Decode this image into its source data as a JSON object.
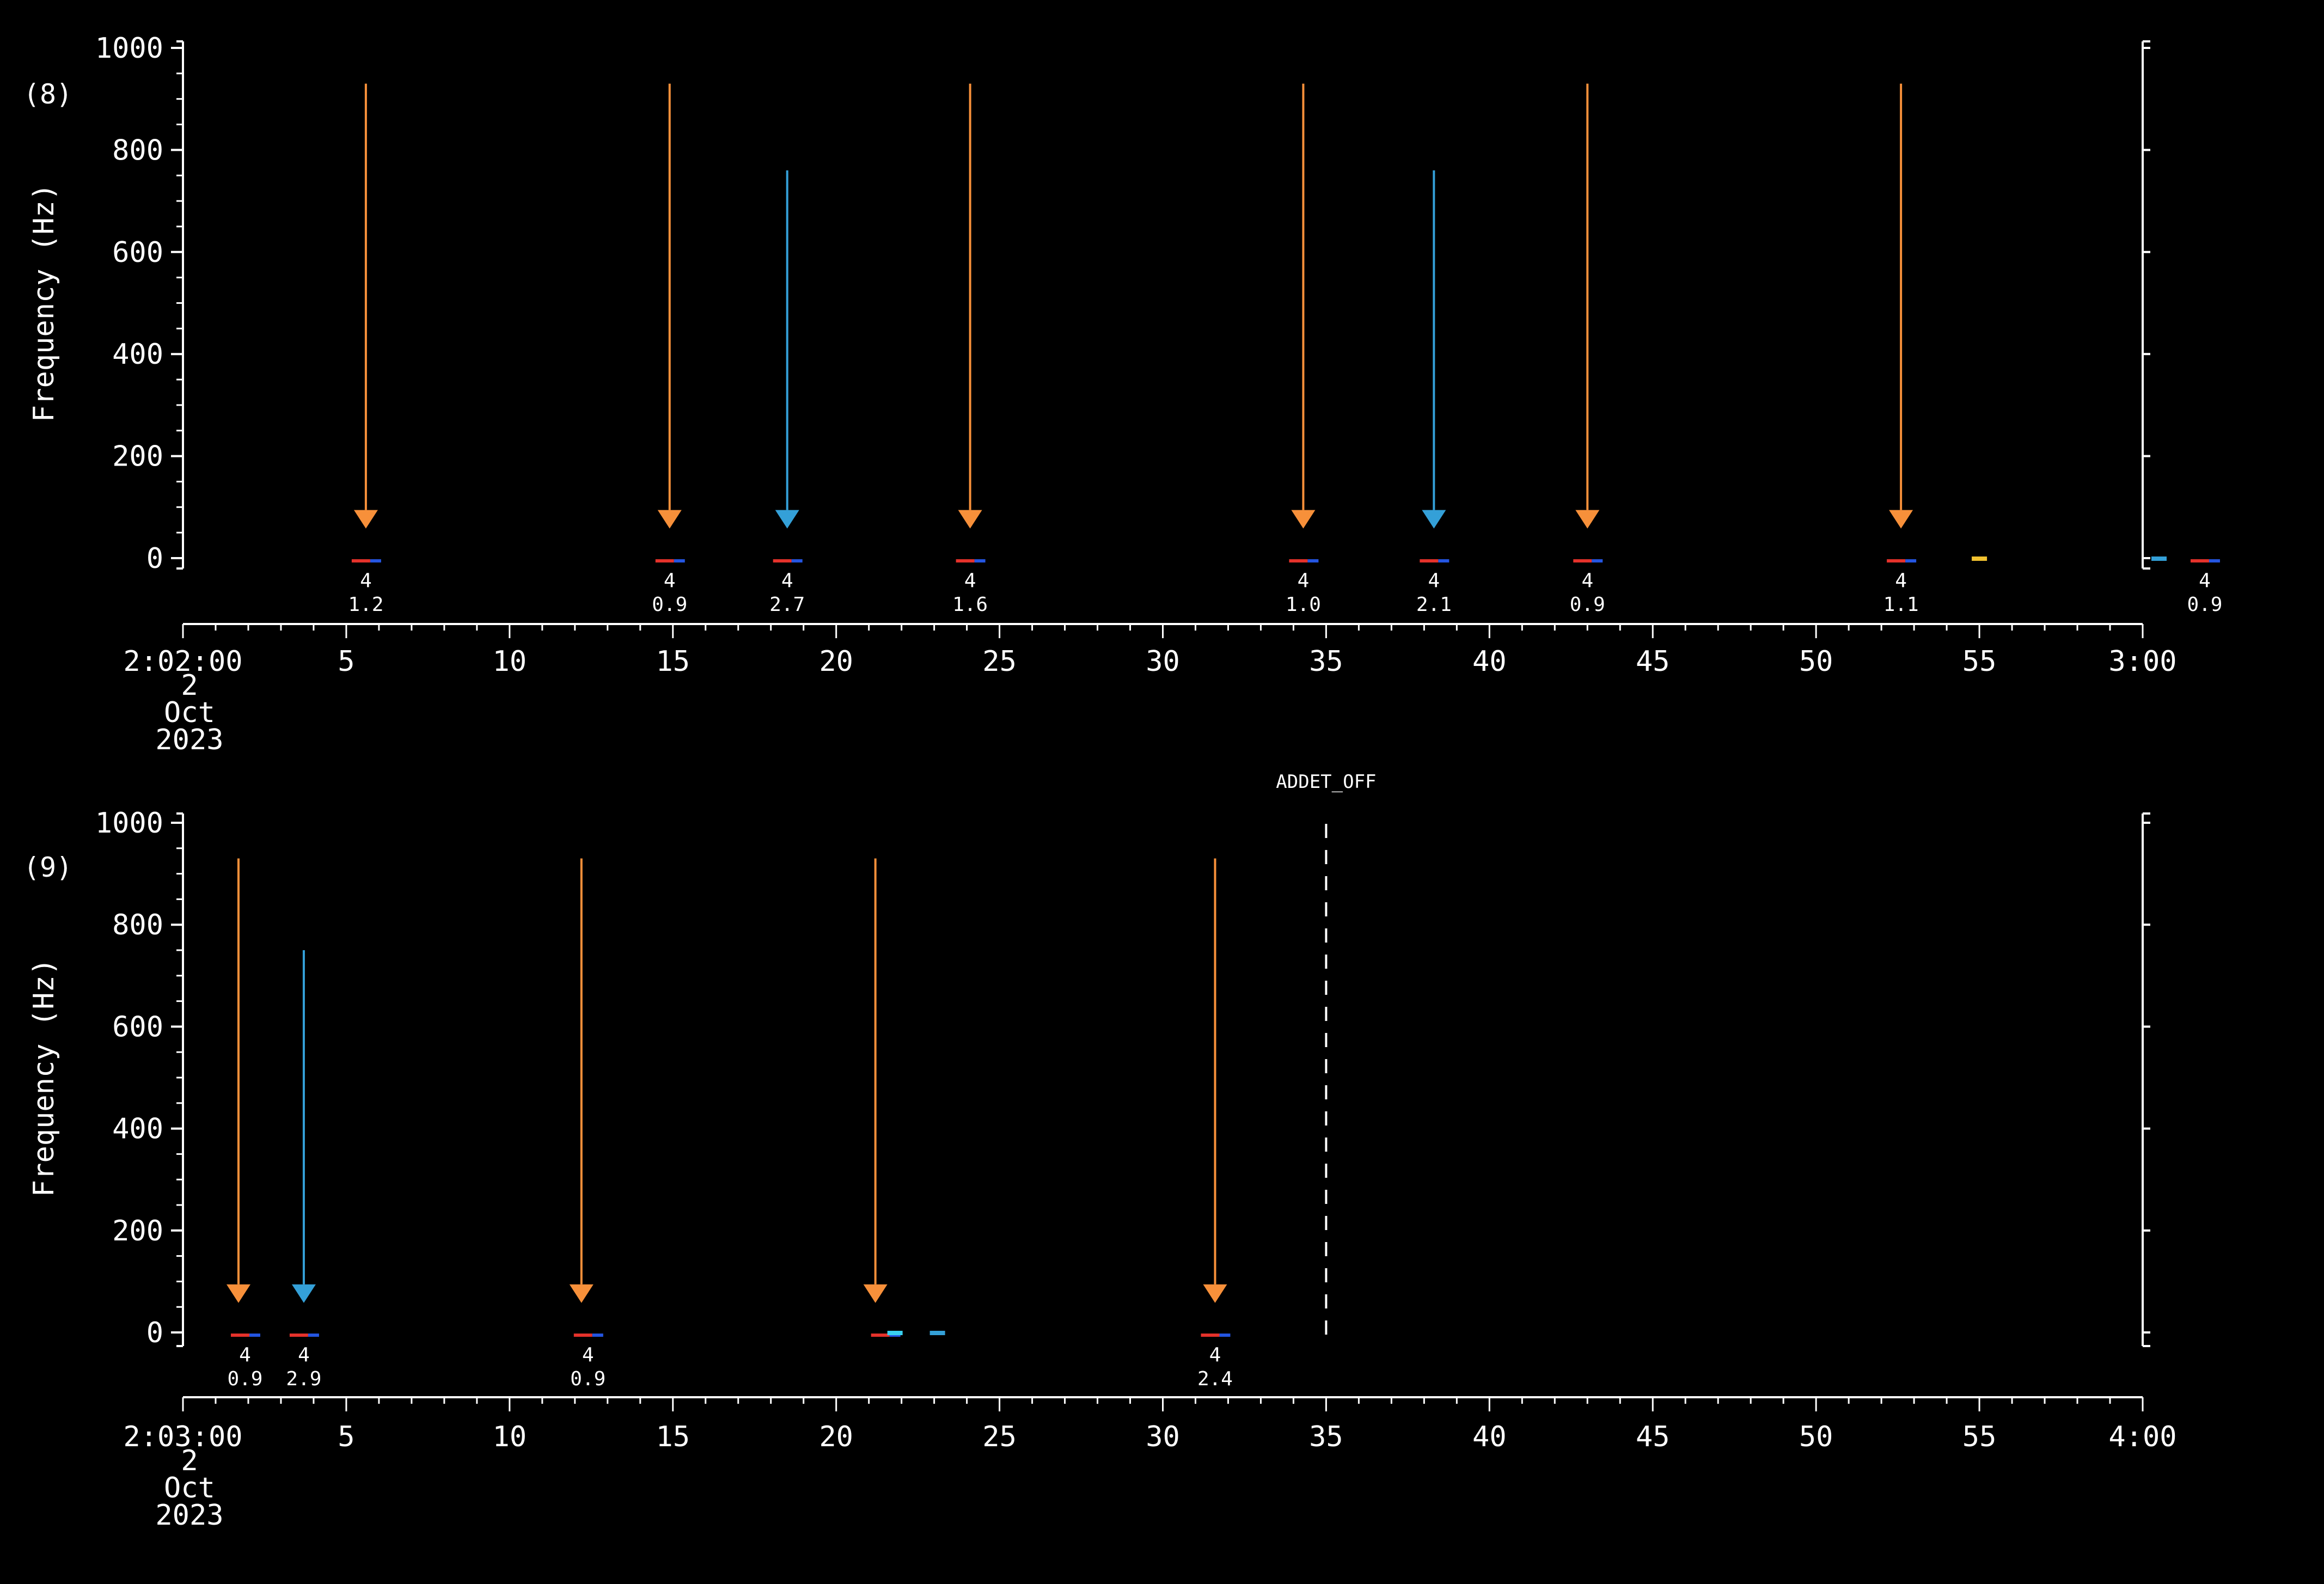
{
  "colors": {
    "background": "#000000",
    "axis": "#ffffff",
    "arrow_orange": "#f7903a",
    "arrow_blue": "#34a0d8",
    "marker_red": "#e4322b",
    "marker_blue": "#2455e0",
    "marker_yellow": "#f2c230",
    "marker_cyan": "#39d0f0",
    "dashed_line": "#ffffff"
  },
  "chart_data": [
    {
      "type": "scatter",
      "panel_id": "(8)",
      "ylabel": "Frequency (Hz)",
      "ylim": [
        0,
        1000
      ],
      "yticks": [
        "0",
        "200",
        "400",
        "600",
        "800",
        "1000"
      ],
      "x_unit": "seconds after 2:02:00",
      "xlim": [
        0,
        60
      ],
      "xticks": [
        {
          "value": 0,
          "label": "2:02:00"
        },
        {
          "value": 5,
          "label": "5"
        },
        {
          "value": 10,
          "label": "10"
        },
        {
          "value": 15,
          "label": "15"
        },
        {
          "value": 20,
          "label": "20"
        },
        {
          "value": 25,
          "label": "25"
        },
        {
          "value": 30,
          "label": "30"
        },
        {
          "value": 35,
          "label": "35"
        },
        {
          "value": 40,
          "label": "40"
        },
        {
          "value": 45,
          "label": "45"
        },
        {
          "value": 50,
          "label": "50"
        },
        {
          "value": 55,
          "label": "55"
        },
        {
          "value": 60,
          "label": "3:00"
        }
      ],
      "date_lines": [
        "2",
        "Oct",
        "2023"
      ],
      "arrows": [
        {
          "t": 5.6,
          "color": "orange",
          "top_hz": 930
        },
        {
          "t": 14.9,
          "color": "orange",
          "top_hz": 930
        },
        {
          "t": 18.5,
          "color": "blue",
          "top_hz": 760
        },
        {
          "t": 24.1,
          "color": "orange",
          "top_hz": 930
        },
        {
          "t": 34.3,
          "color": "orange",
          "top_hz": 930
        },
        {
          "t": 38.3,
          "color": "blue",
          "top_hz": 760
        },
        {
          "t": 43.0,
          "color": "orange",
          "top_hz": 930
        },
        {
          "t": 52.6,
          "color": "orange",
          "top_hz": 930
        }
      ],
      "markers": [
        {
          "t": 5.6,
          "l1": "4",
          "l2": "1.2"
        },
        {
          "t": 14.9,
          "l1": "4",
          "l2": "0.9"
        },
        {
          "t": 18.5,
          "l1": "4",
          "l2": "2.7"
        },
        {
          "t": 24.1,
          "l1": "4",
          "l2": "1.6"
        },
        {
          "t": 34.3,
          "l1": "4",
          "l2": "1.0"
        },
        {
          "t": 38.3,
          "l1": "4",
          "l2": "2.1"
        },
        {
          "t": 43.0,
          "l1": "4",
          "l2": "0.9"
        },
        {
          "t": 52.6,
          "l1": "4",
          "l2": "1.1"
        },
        {
          "t": 61.9,
          "l1": "4",
          "l2": "0.9"
        }
      ],
      "extra_blips": [
        {
          "t": 55.0,
          "color": "yellow"
        },
        {
          "t": 60.5,
          "color": "blue"
        }
      ],
      "annotations": []
    },
    {
      "type": "scatter",
      "panel_id": "(9)",
      "ylabel": "Frequency (Hz)",
      "ylim": [
        0,
        1000
      ],
      "yticks": [
        "0",
        "200",
        "400",
        "600",
        "800",
        "1000"
      ],
      "x_unit": "seconds after 2:03:00",
      "xlim": [
        0,
        60
      ],
      "xticks": [
        {
          "value": 0,
          "label": "2:03:00"
        },
        {
          "value": 5,
          "label": "5"
        },
        {
          "value": 10,
          "label": "10"
        },
        {
          "value": 15,
          "label": "15"
        },
        {
          "value": 20,
          "label": "20"
        },
        {
          "value": 25,
          "label": "25"
        },
        {
          "value": 30,
          "label": "30"
        },
        {
          "value": 35,
          "label": "35"
        },
        {
          "value": 40,
          "label": "40"
        },
        {
          "value": 45,
          "label": "45"
        },
        {
          "value": 50,
          "label": "50"
        },
        {
          "value": 55,
          "label": "55"
        },
        {
          "value": 60,
          "label": "4:00"
        }
      ],
      "date_lines": [
        "2",
        "Oct",
        "2023"
      ],
      "arrows": [
        {
          "t": 1.7,
          "color": "orange",
          "top_hz": 930
        },
        {
          "t": 3.7,
          "color": "blue",
          "top_hz": 750
        },
        {
          "t": 12.2,
          "color": "orange",
          "top_hz": 930
        },
        {
          "t": 21.2,
          "color": "orange",
          "top_hz": 930
        },
        {
          "t": 31.6,
          "color": "orange",
          "top_hz": 930
        }
      ],
      "markers": [
        {
          "t": 1.9,
          "l1": "4",
          "l2": "0.9"
        },
        {
          "t": 3.7,
          "l1": "4",
          "l2": "2.9"
        },
        {
          "t": 12.4,
          "l1": "4",
          "l2": "0.9"
        },
        {
          "t": 21.5,
          "l1": "",
          "l2": ""
        },
        {
          "t": 31.6,
          "l1": "4",
          "l2": "2.4"
        }
      ],
      "extra_blips": [
        {
          "t": 21.8,
          "color": "cyan"
        },
        {
          "t": 23.1,
          "color": "blue"
        }
      ],
      "annotations": [
        {
          "t": 35.0,
          "text": "ADDET_OFF",
          "dashed": true
        }
      ]
    }
  ]
}
